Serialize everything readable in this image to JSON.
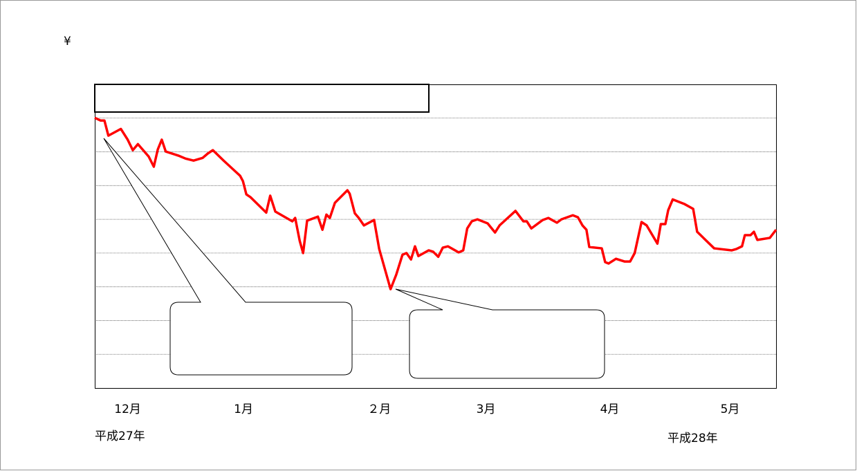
{
  "chart_data": {
    "type": "line",
    "currency_mark": "¥",
    "start_era": "平成27年",
    "end_era": "平成28年",
    "xlim": [
      0,
      120
    ],
    "ylim": [
      0,
      9
    ],
    "yticks": [
      1,
      2,
      3,
      4,
      5,
      6,
      7,
      8
    ],
    "grid": true,
    "xticks": [
      {
        "value": 5.8,
        "label": "12月"
      },
      {
        "value": 26.2,
        "label": "1月"
      },
      {
        "value": 50.1,
        "label": "２月"
      },
      {
        "value": 68.9,
        "label": "3月"
      },
      {
        "value": 90.7,
        "label": "4月"
      },
      {
        "value": 111.9,
        "label": "5月"
      }
    ],
    "series": [
      {
        "color": "#ff0000",
        "x": [
          0,
          1.0,
          1.7,
          2.4,
          4.6,
          5.8,
          6.7,
          7.6,
          9.5,
          10.4,
          11.1,
          11.8,
          12.5,
          14.7,
          16.0,
          17.4,
          19.0,
          19.9,
          20.8,
          22.7,
          24.7,
          25.6,
          26.1,
          26.7,
          27.4,
          30.2,
          30.9,
          31.8,
          34.8,
          35.3,
          36.1,
          36.7,
          37.4,
          39.3,
          40.1,
          40.8,
          41.4,
          42.3,
          44.5,
          44.9,
          45.8,
          46.5,
          47.4,
          49.2,
          50.1,
          52.1,
          53.1,
          54.2,
          54.9,
          55.7,
          56.4,
          57.0,
          58.8,
          59.6,
          60.5,
          61.3,
          62.2,
          64.1,
          64.9,
          65.6,
          66.4,
          67.4,
          69.2,
          70.5,
          71.3,
          74.1,
          75.5,
          76.1,
          76.9,
          78.9,
          79.9,
          81.4,
          82.2,
          84.2,
          85.1,
          85.9,
          86.6,
          87.1,
          89.3,
          89.9,
          90.5,
          91.8,
          93.3,
          94.3,
          95.1,
          96.3,
          97.2,
          99.1,
          99.7,
          100.5,
          101.0,
          101.8,
          103.9,
          105.4,
          106.1,
          109.1,
          112.2,
          113.0,
          114.0,
          114.5,
          115.5,
          116.1,
          116.7,
          118.9,
          120
        ],
        "values": [
          8.01,
          7.93,
          7.93,
          7.48,
          7.68,
          7.36,
          7.05,
          7.23,
          6.86,
          6.56,
          7.07,
          7.36,
          7.01,
          6.89,
          6.8,
          6.74,
          6.82,
          6.95,
          7.05,
          6.74,
          6.43,
          6.29,
          6.13,
          5.74,
          5.66,
          5.2,
          5.7,
          5.23,
          4.94,
          5.04,
          4.36,
          4.0,
          4.96,
          5.08,
          4.69,
          5.14,
          5.04,
          5.49,
          5.86,
          5.76,
          5.18,
          5.04,
          4.82,
          4.98,
          4.12,
          2.93,
          3.36,
          3.95,
          4.0,
          3.81,
          4.2,
          3.91,
          4.08,
          4.04,
          3.89,
          4.16,
          4.2,
          4.02,
          4.08,
          4.73,
          4.94,
          5.0,
          4.88,
          4.61,
          4.82,
          5.25,
          4.94,
          4.94,
          4.73,
          4.98,
          5.04,
          4.9,
          5.0,
          5.12,
          5.06,
          4.82,
          4.69,
          4.18,
          4.14,
          3.73,
          3.69,
          3.83,
          3.75,
          3.75,
          4.0,
          4.92,
          4.82,
          4.28,
          4.86,
          4.86,
          5.27,
          5.59,
          5.45,
          5.31,
          4.63,
          4.14,
          4.08,
          4.12,
          4.2,
          4.53,
          4.53,
          4.63,
          4.39,
          4.45,
          4.69
        ]
      }
    ]
  }
}
